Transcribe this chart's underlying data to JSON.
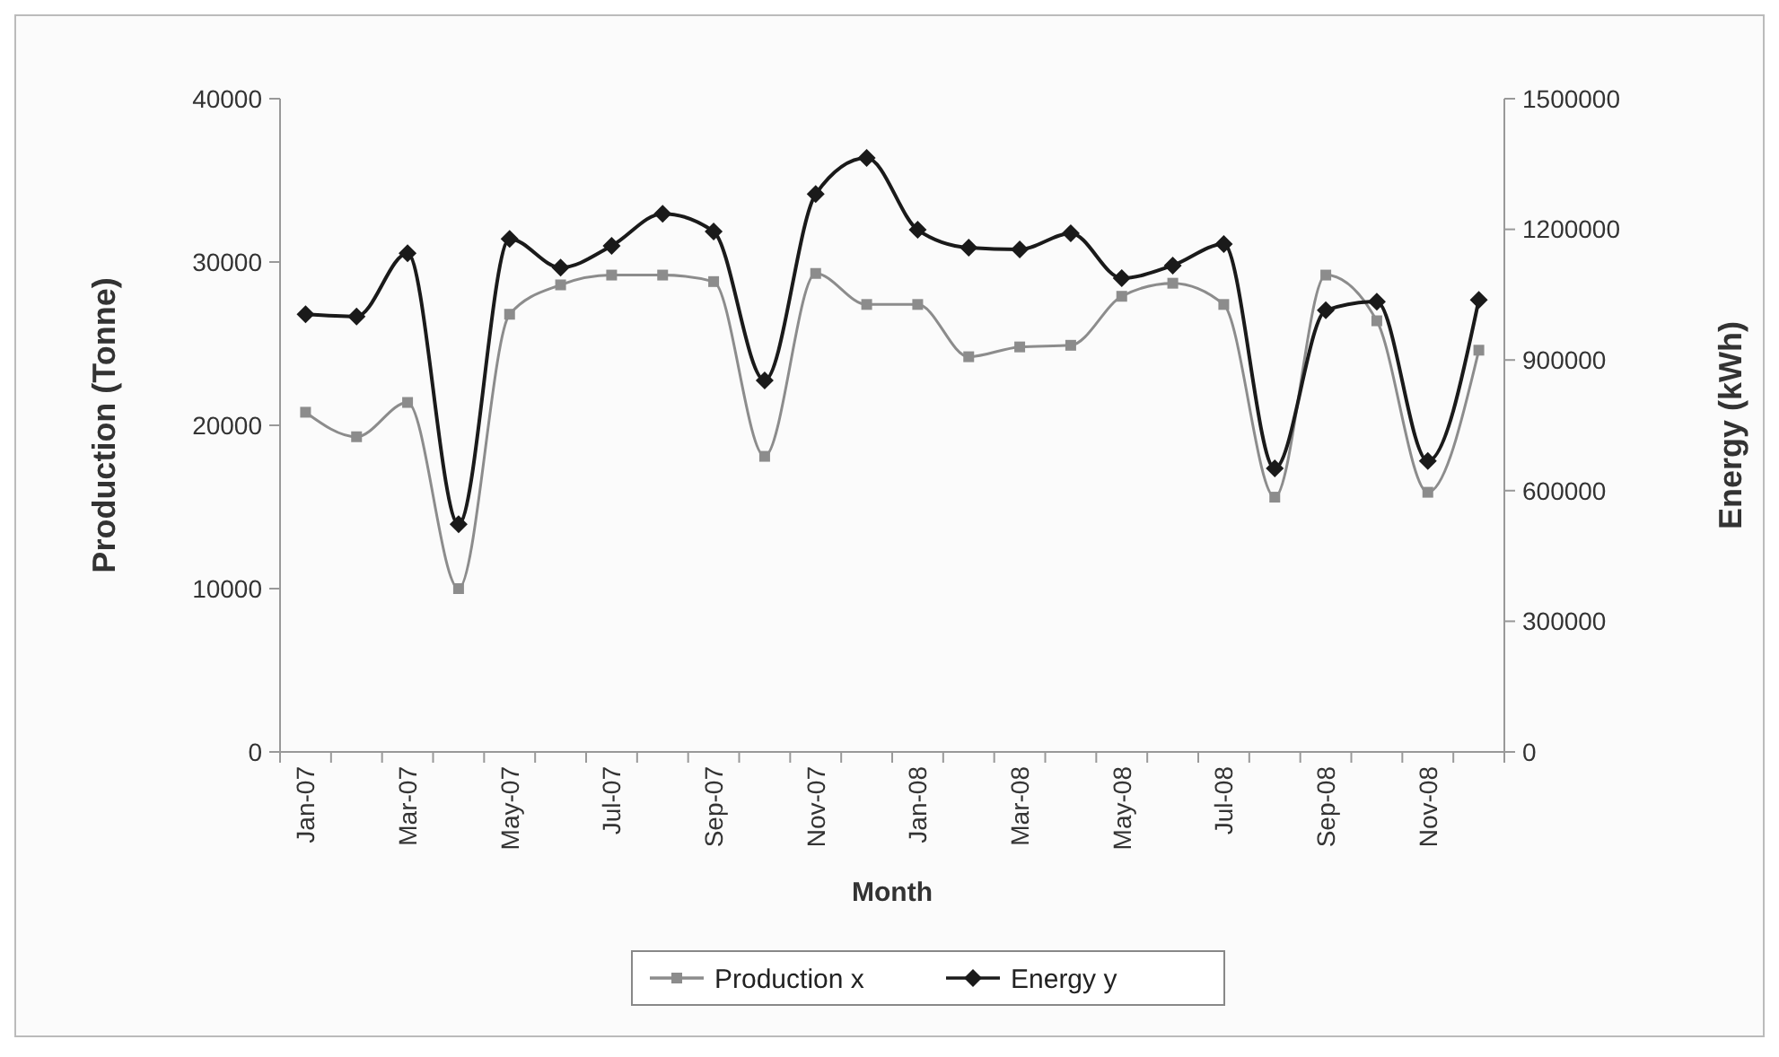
{
  "chart_data": {
    "type": "line",
    "xlabel": "Month",
    "ylabel": "Production (Tonne)",
    "y2label": "Energy (kWh)",
    "categories": [
      "Jan-07",
      null,
      "Mar-07",
      null,
      "May-07",
      null,
      "Jul-07",
      null,
      "Sep-07",
      null,
      "Nov-07",
      null,
      "Jan-08",
      null,
      "Mar-08",
      null,
      "May-08",
      null,
      "Jul-08",
      null,
      "Sep-08",
      null,
      "Nov-08",
      null
    ],
    "series": [
      {
        "name": "Production x",
        "color": "#8c8c8c",
        "marker": "square",
        "values": [
          20800,
          19300,
          21400,
          10000,
          26800,
          28600,
          29200,
          29200,
          28800,
          18100,
          29300,
          27400,
          27400,
          24200,
          24800,
          24900,
          27900,
          28700,
          27400,
          15600,
          29200,
          26400,
          15900,
          24600
        ]
      },
      {
        "name": "Energy y",
        "color": "#1a1a1a",
        "marker": "diamond",
        "axis": "y2",
        "values": [
          1005000,
          1000000,
          1145000,
          523000,
          1178000,
          1112000,
          1162000,
          1236000,
          1195000,
          853000,
          1281000,
          1364000,
          1199000,
          1158000,
          1154000,
          1191000,
          1088000,
          1117000,
          1166000,
          651000,
          1014000,
          1034000,
          668000,
          1038000
        ]
      }
    ],
    "ylim": [
      0,
      40000
    ],
    "yticks": [
      0,
      10000,
      20000,
      30000,
      40000
    ],
    "y2lim": [
      0,
      1500000
    ],
    "y2ticks": [
      0,
      300000,
      600000,
      900000,
      1200000,
      1500000
    ],
    "grid": false,
    "legend": "bottom",
    "line_style": "solid"
  }
}
